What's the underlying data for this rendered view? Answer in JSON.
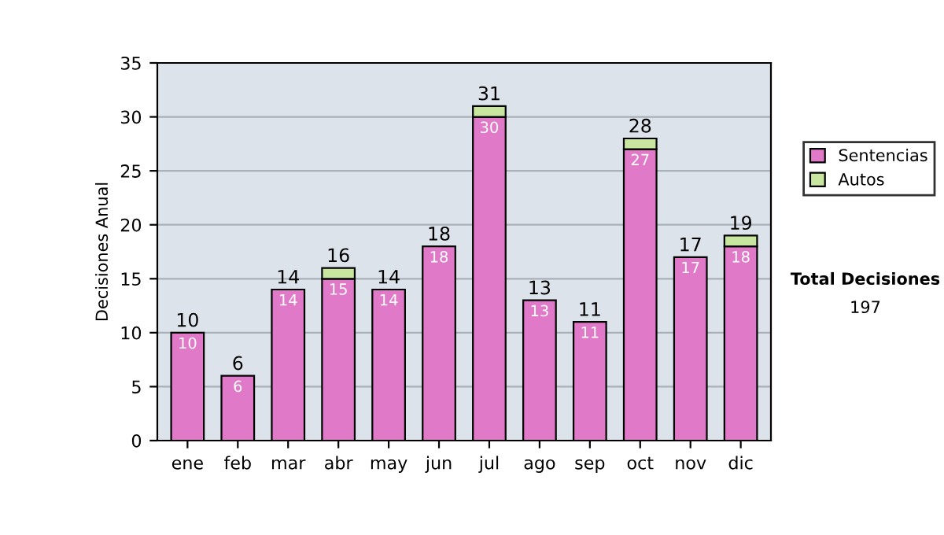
{
  "chart_data": {
    "type": "bar",
    "stacked": true,
    "ylabel": "Decisiones Anual",
    "categories": [
      "ene",
      "feb",
      "mar",
      "abr",
      "may",
      "jun",
      "jul",
      "ago",
      "sep",
      "oct",
      "nov",
      "dic"
    ],
    "series": [
      {
        "name": "Sentencias",
        "color": "#e07ac8",
        "values": [
          10,
          6,
          14,
          15,
          14,
          18,
          30,
          13,
          11,
          27,
          17,
          18
        ],
        "value_labels": [
          "10",
          "6",
          "14",
          "15",
          "14",
          "18",
          "30",
          "13",
          "11",
          "27",
          "17",
          "18"
        ]
      },
      {
        "name": "Autos",
        "color": "#c8e6a0",
        "values": [
          null,
          null,
          null,
          1,
          null,
          null,
          1,
          null,
          null,
          1,
          null,
          1
        ]
      }
    ],
    "totals": [
      "10",
      "6",
      "14",
      "16",
      "14",
      "18",
      "31",
      "13",
      "11",
      "28",
      "17",
      "19"
    ],
    "ylim": [
      0,
      35
    ],
    "yticks": [
      0,
      5,
      10,
      15,
      20,
      25,
      30,
      35
    ],
    "grid": "y",
    "legend": "right",
    "annotations": [
      "Total Decisiones",
      "197"
    ]
  }
}
